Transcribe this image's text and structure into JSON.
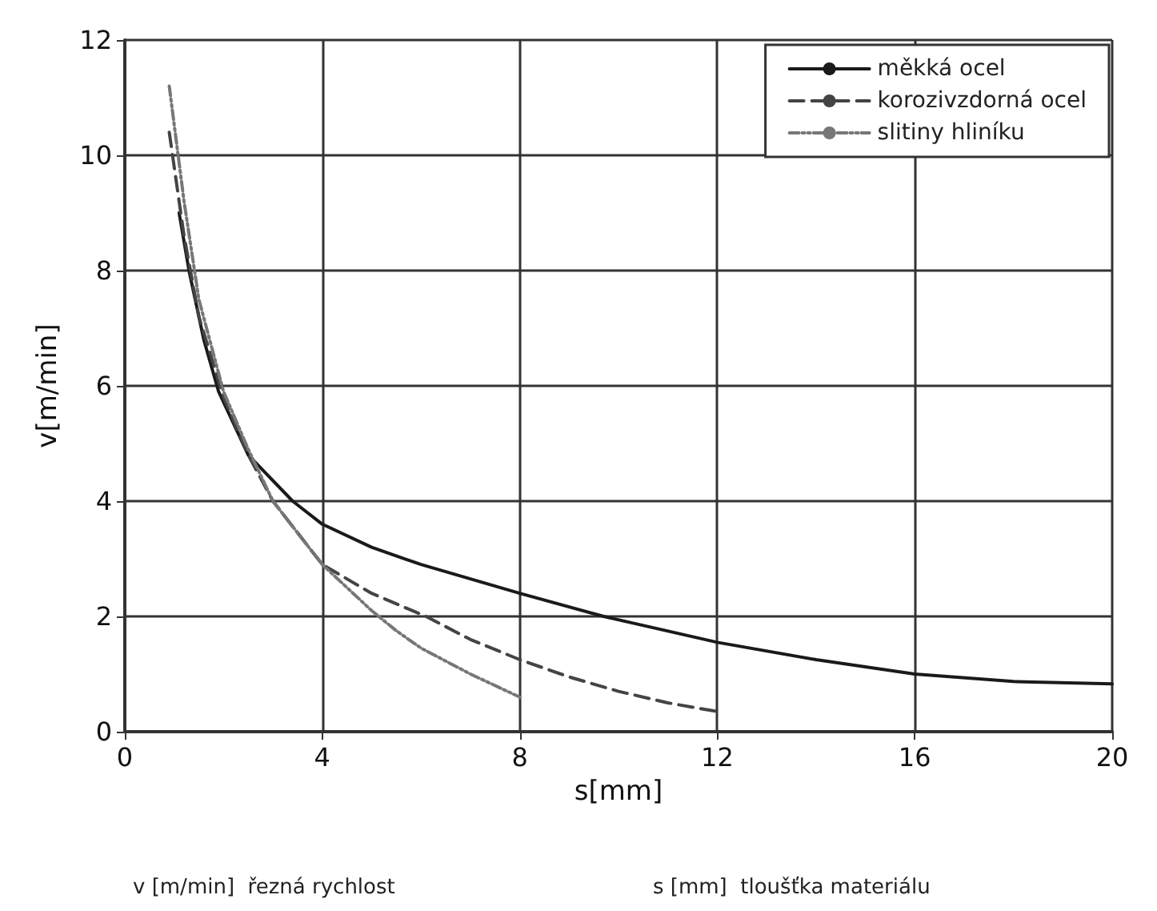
{
  "chart_data": {
    "type": "line",
    "xlabel": "s[mm]",
    "ylabel": "v[m/min]",
    "xlim": [
      0,
      20
    ],
    "xticks": [
      0,
      4,
      8,
      12,
      16,
      20
    ],
    "ylim": [
      0,
      12
    ],
    "yticks": [
      0,
      2,
      4,
      6,
      8,
      10,
      12
    ],
    "grid": true,
    "legend": "top right",
    "marker": "none",
    "series": [
      {
        "name": "měkká ocel",
        "color": "#1a1a1a",
        "line_style": "solid",
        "x": [
          1.1,
          1.3,
          1.6,
          1.9,
          2.5,
          3.4,
          4,
          5,
          6,
          8,
          9.7,
          12,
          14,
          16,
          18,
          20
        ],
        "values": [
          9.0,
          8.0,
          6.8,
          5.9,
          4.8,
          4.0,
          3.6,
          3.2,
          2.9,
          2.4,
          2.0,
          1.55,
          1.25,
          1.0,
          0.87,
          0.83
        ]
      },
      {
        "name": "korozivzdorná ocel",
        "color": "#444444",
        "line_style": "dashed",
        "x": [
          0.9,
          1.2,
          1.5,
          2,
          2.5,
          3,
          4,
          5,
          6.1,
          7,
          8,
          9,
          10,
          11,
          12
        ],
        "values": [
          10.4,
          8.6,
          7.2,
          5.8,
          4.8,
          4.0,
          2.9,
          2.4,
          2.0,
          1.6,
          1.25,
          0.95,
          0.7,
          0.5,
          0.35
        ]
      },
      {
        "name": "slitiny hliníku",
        "color": "#777777",
        "line_style": "dotted",
        "x": [
          0.9,
          1.2,
          1.5,
          2,
          2.5,
          3,
          4,
          5,
          5.5,
          6,
          7,
          8
        ],
        "values": [
          11.2,
          9.2,
          7.5,
          5.9,
          4.9,
          4.0,
          2.9,
          2.1,
          1.75,
          1.45,
          1.0,
          0.6
        ]
      }
    ],
    "annotations": [
      "v [m/min]  řezná rychlost",
      "s [mm]  tloušťka materiálu"
    ]
  }
}
